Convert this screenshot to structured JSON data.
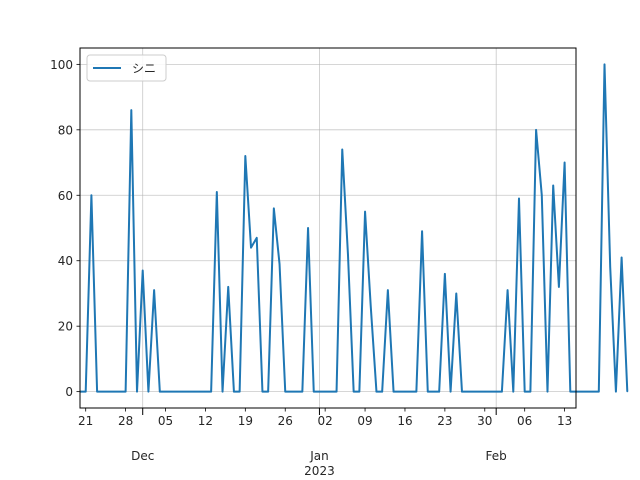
{
  "chart_data": {
    "type": "line",
    "title": "",
    "xlabel": "",
    "ylabel": "",
    "x_start": "2022-11-20",
    "x_end": "2023-02-15",
    "ylim": [
      -5,
      105
    ],
    "grid": true,
    "legend_position": "top-left",
    "yticks": [
      0,
      20,
      40,
      60,
      80,
      100
    ],
    "xticks_minor": [
      {
        "date": "2022-11-21",
        "label": "21"
      },
      {
        "date": "2022-11-28",
        "label": "28"
      },
      {
        "date": "2022-12-05",
        "label": "05"
      },
      {
        "date": "2022-12-12",
        "label": "12"
      },
      {
        "date": "2022-12-19",
        "label": "19"
      },
      {
        "date": "2022-12-26",
        "label": "26"
      },
      {
        "date": "2023-01-02",
        "label": "02"
      },
      {
        "date": "2023-01-09",
        "label": "09"
      },
      {
        "date": "2023-01-16",
        "label": "16"
      },
      {
        "date": "2023-01-23",
        "label": "23"
      },
      {
        "date": "2023-01-30",
        "label": "30"
      },
      {
        "date": "2023-02-06",
        "label": "06"
      },
      {
        "date": "2023-02-13",
        "label": "13"
      }
    ],
    "xticks_major": [
      {
        "date": "2022-12-01",
        "label": "Dec",
        "sublabel": ""
      },
      {
        "date": "2023-01-01",
        "label": "Jan",
        "sublabel": "2023"
      },
      {
        "date": "2023-02-01",
        "label": "Feb",
        "sublabel": ""
      }
    ],
    "series": [
      {
        "name": "シニ",
        "color": "#1f77b4",
        "values": [
          0,
          0,
          60,
          0,
          0,
          0,
          0,
          0,
          0,
          86,
          0,
          37,
          0,
          31,
          0,
          0,
          0,
          0,
          0,
          0,
          0,
          0,
          0,
          0,
          61,
          0,
          32,
          0,
          0,
          72,
          44,
          47,
          0,
          0,
          56,
          39,
          0,
          0,
          0,
          0,
          50,
          0,
          0,
          0,
          0,
          0,
          74,
          42,
          0,
          0,
          55,
          26,
          0,
          0,
          31,
          0,
          0,
          0,
          0,
          0,
          49,
          0,
          0,
          0,
          36,
          0,
          30,
          0,
          0,
          0,
          0,
          0,
          0,
          0,
          0,
          31,
          0,
          59,
          0,
          0,
          80,
          60,
          0,
          63,
          32,
          70,
          0,
          0,
          0,
          0,
          0,
          0,
          100,
          38,
          0,
          41,
          0
        ]
      }
    ]
  }
}
